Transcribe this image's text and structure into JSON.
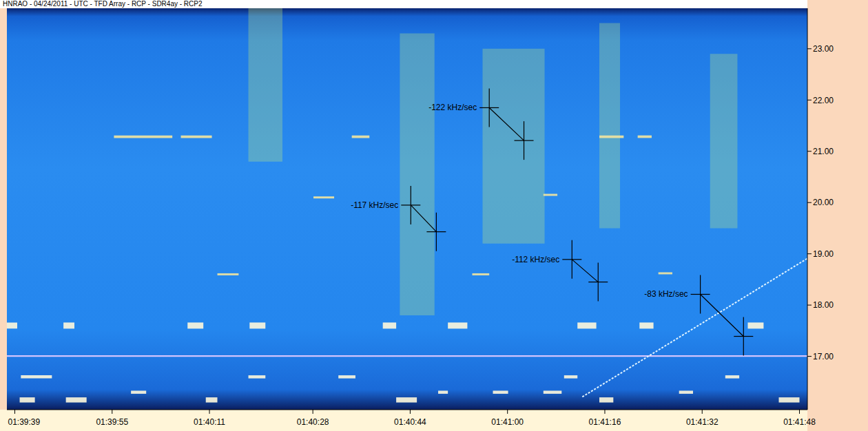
{
  "chart_data": {
    "type": "spectrogram",
    "title": "HNRAO - 04/24/2011 - UTC - TFD Array - RCP - SDR4ay - RCP2",
    "xlim": [
      5977.7,
      6109.3
    ],
    "xticks": [
      {
        "value": 5979,
        "label": "01:39:39"
      },
      {
        "value": 5995,
        "label": "01:39:55"
      },
      {
        "value": 6011,
        "label": "01:40:11"
      },
      {
        "value": 6028,
        "label": "01:40:28"
      },
      {
        "value": 6044,
        "label": "01:40:44"
      },
      {
        "value": 6060,
        "label": "01:41:00"
      },
      {
        "value": 6076,
        "label": "01:41:16"
      },
      {
        "value": 6092,
        "label": "01:41:32"
      },
      {
        "value": 6108,
        "label": "01:41:48"
      }
    ],
    "ylim": [
      15.96,
      23.79
    ],
    "yticks": [
      {
        "value": 17,
        "label": "17.00"
      },
      {
        "value": 18,
        "label": "18.00"
      },
      {
        "value": 19,
        "label": "19.00"
      },
      {
        "value": 20,
        "label": "20.00"
      },
      {
        "value": 21,
        "label": "21.00"
      },
      {
        "value": 22,
        "label": "22.00"
      },
      {
        "value": 23,
        "label": "23.00"
      }
    ],
    "grid": false,
    "bursts": {
      "color": "#c8f07a",
      "regions": [
        [
          6017.4,
          6023.0,
          20.8,
          23.79
        ],
        [
          6042.3,
          6048.0,
          17.8,
          23.3
        ],
        [
          6055.9,
          6066.1,
          19.2,
          23.0
        ],
        [
          6075.1,
          6078.5,
          19.5,
          23.5
        ],
        [
          6093.3,
          6097.8,
          19.5,
          22.9
        ]
      ]
    },
    "carriers": [
      {
        "color": "#fff8dc",
        "regions": [
          [
            5977.7,
            5979.4,
            17.54,
            17.66
          ],
          [
            5987.0,
            5988.8,
            17.54,
            17.66
          ],
          [
            6007.4,
            6010.0,
            17.54,
            17.66
          ],
          [
            6017.6,
            6020.2,
            17.54,
            17.66
          ],
          [
            6039.5,
            6041.7,
            17.54,
            17.66
          ],
          [
            6050.2,
            6053.4,
            17.54,
            17.66
          ],
          [
            6071.5,
            6074.6,
            17.54,
            17.66
          ],
          [
            6081.7,
            6084.0,
            17.54,
            17.66
          ],
          [
            6099.5,
            6102.1,
            17.54,
            17.66
          ],
          [
            5979.8,
            5982.3,
            16.1,
            16.2
          ],
          [
            5987.4,
            5990.8,
            16.1,
            16.2
          ],
          [
            6010.4,
            6012.3,
            16.1,
            16.2
          ],
          [
            6041.7,
            6045.1,
            16.1,
            16.2
          ],
          [
            6075.1,
            6077.4,
            16.1,
            16.2
          ],
          [
            6104.6,
            6108.0,
            16.1,
            16.2
          ],
          [
            5998.1,
            6000.6,
            16.27,
            16.33
          ],
          [
            6048.6,
            6050.2,
            16.27,
            16.33
          ],
          [
            6057.6,
            6060.1,
            16.27,
            16.33
          ],
          [
            6065.9,
            6068.9,
            16.27,
            16.33
          ],
          [
            6088.2,
            6090.5,
            16.27,
            16.33
          ],
          [
            5980.0,
            5985.1,
            16.57,
            16.63
          ],
          [
            6017.4,
            6020.2,
            16.57,
            16.63
          ],
          [
            6032.2,
            6035.0,
            16.57,
            16.63
          ],
          [
            6069.3,
            6071.5,
            16.57,
            16.63
          ],
          [
            6095.8,
            6098.1,
            16.57,
            16.63
          ]
        ]
      },
      {
        "color": "#f2e6a0",
        "regions": [
          [
            5995.3,
            6004.9,
            21.26,
            21.31
          ],
          [
            6006.3,
            6011.4,
            21.26,
            21.31
          ],
          [
            6034.4,
            6037.3,
            21.26,
            21.31
          ],
          [
            6075.1,
            6079.1,
            21.26,
            21.31
          ],
          [
            6081.4,
            6083.7,
            21.26,
            21.31
          ],
          [
            6012.3,
            6015.8,
            18.58,
            18.62
          ],
          [
            6054.2,
            6057.0,
            18.58,
            18.62
          ],
          [
            6084.8,
            6087.1,
            18.6,
            18.64
          ],
          [
            6028.1,
            6031.5,
            20.08,
            20.12
          ],
          [
            6065.9,
            6068.2,
            20.13,
            20.17
          ]
        ]
      },
      {
        "color": "#e6ccff",
        "regions": [
          [
            5977.7,
            6109.3,
            16.99,
            17.02
          ]
        ]
      }
    ],
    "lines": [
      {
        "x": [
          6072.3,
          6109.3
        ],
        "y": [
          16.21,
          18.91
        ],
        "color": "#dff3ff"
      }
    ],
    "annotations": [
      {
        "label": "-122 kHz/sec",
        "x": [
          6057.0,
          6062.7
        ],
        "y": [
          21.85,
          21.21
        ]
      },
      {
        "label": "-117 kHz/sec",
        "x": [
          6044.1,
          6048.3
        ],
        "y": [
          19.95,
          19.43
        ]
      },
      {
        "label": "-112 kHz/sec",
        "x": [
          6070.6,
          6074.9
        ],
        "y": [
          18.89,
          18.45
        ]
      },
      {
        "label": "-83 kHz/sec",
        "x": [
          6091.7,
          6098.8
        ],
        "y": [
          18.21,
          17.39
        ]
      }
    ]
  }
}
